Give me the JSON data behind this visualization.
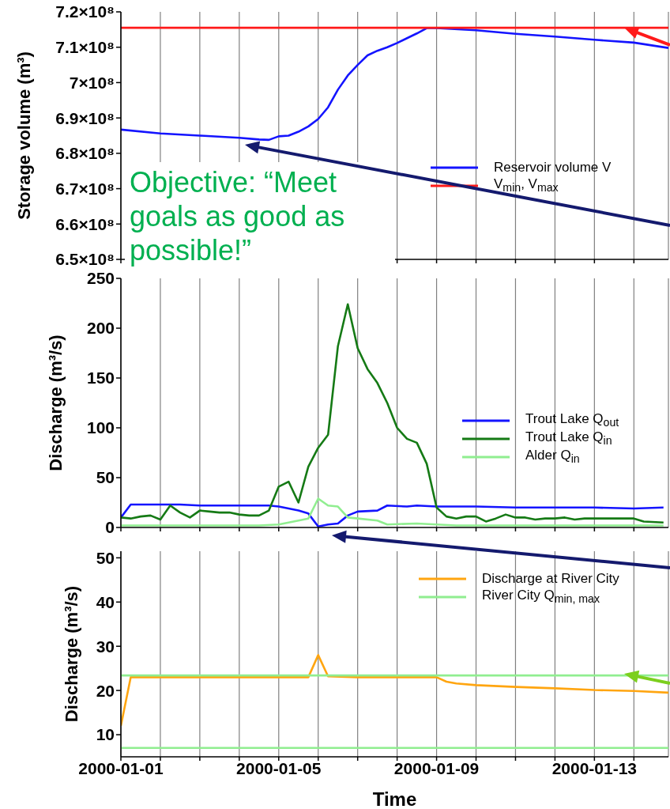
{
  "chart_data": [
    {
      "type": "line",
      "ylabel": "Storage volume (m³)",
      "legend": "right",
      "grid": "x",
      "tick_labels": "y",
      "annotations": [
        "Objective: “Meet goals as good as possible!”"
      ],
      "xlim": [
        "2000-01-01T00:00",
        "2000-01-14T21:00"
      ],
      "xticks": [
        "2000-01-01",
        {
          "value": "2000-01-02",
          "label": null
        },
        {
          "value": "2000-01-03",
          "label": null
        },
        {
          "value": "2000-01-04",
          "label": null
        },
        "2000-01-05",
        {
          "value": "2000-01-06",
          "label": null
        },
        {
          "value": "2000-01-07",
          "label": null
        },
        {
          "value": "2000-01-08",
          "label": null
        },
        "2000-01-09",
        {
          "value": "2000-01-10",
          "label": null
        },
        {
          "value": "2000-01-11",
          "label": null
        },
        {
          "value": "2000-01-12",
          "label": null
        },
        "2000-01-13",
        {
          "value": "2000-01-14",
          "label": null
        }
      ],
      "ylim": [
        650000000,
        720000000
      ],
      "yticks": [
        {
          "value": 650000000,
          "label": "6.5×10⁸"
        },
        {
          "value": 660000000,
          "label": "6.6×10⁸"
        },
        {
          "value": 670000000,
          "label": "6.7×10⁸"
        },
        {
          "value": 680000000,
          "label": "6.8×10⁸"
        },
        {
          "value": 690000000,
          "label": "6.9×10⁸"
        },
        {
          "value": 700000000,
          "label": "7×10⁸"
        },
        {
          "value": 710000000,
          "label": "7.1×10⁸"
        },
        {
          "value": 720000000,
          "label": "7.2×10⁸"
        }
      ],
      "series": [
        {
          "name": "Reservoir volume V",
          "color": "#1414ff",
          "x": [
            "2000-01-01T00:00",
            "2000-01-02T00:00",
            "2000-01-03T00:00",
            "2000-01-04T00:00",
            "2000-01-04T12:00",
            "2000-01-04T18:00",
            "2000-01-05T00:00",
            "2000-01-05T06:00",
            "2000-01-05T12:00",
            "2000-01-05T18:00",
            "2000-01-06T00:00",
            "2000-01-06T06:00",
            "2000-01-06T12:00",
            "2000-01-06T18:00",
            "2000-01-07T00:00",
            "2000-01-07T06:00",
            "2000-01-07T12:00",
            "2000-01-07T18:00",
            "2000-01-08T00:00",
            "2000-01-08T12:00",
            "2000-01-08T18:00",
            "2000-01-09T00:00",
            "2000-01-10T00:00",
            "2000-01-11T00:00",
            "2000-01-12T00:00",
            "2000-01-13T00:00",
            "2000-01-14T00:00",
            "2000-01-14T21:00"
          ],
          "values": [
            686700000,
            685600000,
            685000000,
            684400000,
            683900000,
            683800000,
            684800000,
            685000000,
            686100000,
            687600000,
            689700000,
            693000000,
            698000000,
            702000000,
            705000000,
            707700000,
            709000000,
            710000000,
            711200000,
            713900000,
            715400000,
            715400000,
            714800000,
            713800000,
            713000000,
            712100000,
            711300000,
            709800000
          ]
        },
        {
          "name": "V$_{min}$, V$_{max}$",
          "color": "#ff1a1a",
          "x": [
            "2000-01-01T00:00",
            "2000-01-14T21:00"
          ],
          "values": [
            715500000,
            715500000
          ]
        }
      ]
    },
    {
      "type": "line",
      "ylabel": "Discharge (m³/s)",
      "legend": "right",
      "grid": "x",
      "tick_labels": "y",
      "xlim": [
        "2000-01-01T00:00",
        "2000-01-14T21:00"
      ],
      "xticks": [
        "2000-01-01",
        {
          "value": "2000-01-02",
          "label": null
        },
        {
          "value": "2000-01-03",
          "label": null
        },
        {
          "value": "2000-01-04",
          "label": null
        },
        "2000-01-05",
        {
          "value": "2000-01-06",
          "label": null
        },
        {
          "value": "2000-01-07",
          "label": null
        },
        {
          "value": "2000-01-08",
          "label": null
        },
        "2000-01-09",
        {
          "value": "2000-01-10",
          "label": null
        },
        {
          "value": "2000-01-11",
          "label": null
        },
        {
          "value": "2000-01-12",
          "label": null
        },
        "2000-01-13",
        {
          "value": "2000-01-14",
          "label": null
        }
      ],
      "ylim": [
        0,
        250
      ],
      "yticks": [
        0,
        50,
        100,
        150,
        200,
        250
      ],
      "series": [
        {
          "name": "Trout Lake Q$_{out}$",
          "color": "#1414ff",
          "x": [
            "2000-01-01T00:00",
            "2000-01-01T06:00",
            "2000-01-02T00:00",
            "2000-01-02T06:00",
            "2000-01-02T12:00",
            "2000-01-03T00:00",
            "2000-01-03T06:00",
            "2000-01-04T00:00",
            "2000-01-04T18:00",
            "2000-01-05T00:00",
            "2000-01-05T06:00",
            "2000-01-05T12:00",
            "2000-01-05T18:00",
            "2000-01-06T00:00",
            "2000-01-06T06:00",
            "2000-01-06T12:00",
            "2000-01-06T18:00",
            "2000-01-07T00:00",
            "2000-01-07T12:00",
            "2000-01-07T18:00",
            "2000-01-08T06:00",
            "2000-01-08T12:00",
            "2000-01-09T00:00",
            "2000-01-10T00:00",
            "2000-01-11T00:00",
            "2000-01-12T00:00",
            "2000-01-13T00:00",
            "2000-01-14T00:00",
            "2000-01-14T18:00"
          ],
          "values": [
            10,
            23,
            23,
            23,
            23,
            22,
            22,
            22,
            22,
            21,
            19,
            17,
            14,
            1,
            3,
            4,
            12,
            16,
            17,
            22,
            21,
            22,
            21,
            21,
            20,
            20,
            20,
            19,
            20
          ]
        },
        {
          "name": "Trout Lake Q$_{in}$",
          "color": "#157a15",
          "x": [
            "2000-01-01T00:00",
            "2000-01-01T06:00",
            "2000-01-01T12:00",
            "2000-01-01T18:00",
            "2000-01-02T00:00",
            "2000-01-02T06:00",
            "2000-01-02T12:00",
            "2000-01-02T18:00",
            "2000-01-03T00:00",
            "2000-01-03T06:00",
            "2000-01-03T12:00",
            "2000-01-03T18:00",
            "2000-01-04T00:00",
            "2000-01-04T06:00",
            "2000-01-04T12:00",
            "2000-01-04T18:00",
            "2000-01-05T00:00",
            "2000-01-05T06:00",
            "2000-01-05T12:00",
            "2000-01-05T18:00",
            "2000-01-06T00:00",
            "2000-01-06T06:00",
            "2000-01-06T12:00",
            "2000-01-06T18:00",
            "2000-01-07T00:00",
            "2000-01-07T06:00",
            "2000-01-07T12:00",
            "2000-01-07T18:00",
            "2000-01-08T00:00",
            "2000-01-08T06:00",
            "2000-01-08T12:00",
            "2000-01-08T18:00",
            "2000-01-09T00:00",
            "2000-01-09T06:00",
            "2000-01-09T12:00",
            "2000-01-09T18:00",
            "2000-01-10T00:00",
            "2000-01-10T06:00",
            "2000-01-10T12:00",
            "2000-01-10T18:00",
            "2000-01-11T00:00",
            "2000-01-11T06:00",
            "2000-01-11T12:00",
            "2000-01-11T18:00",
            "2000-01-12T00:00",
            "2000-01-12T06:00",
            "2000-01-12T12:00",
            "2000-01-12T18:00",
            "2000-01-13T00:00",
            "2000-01-13T12:00",
            "2000-01-14T00:00",
            "2000-01-14T06:00",
            "2000-01-14T18:00"
          ],
          "values": [
            10,
            9,
            11,
            12,
            8,
            22,
            15,
            10,
            17,
            16,
            15,
            15,
            13,
            12,
            12,
            17,
            41,
            46,
            25,
            61,
            80,
            93,
            182,
            224,
            180,
            159,
            145,
            125,
            100,
            89,
            85,
            64,
            20,
            11,
            9,
            11,
            11,
            6,
            9,
            13,
            10,
            10,
            8,
            9,
            9,
            10,
            8,
            9,
            9,
            9,
            9,
            6,
            5
          ]
        },
        {
          "name": "Alder Q$_{in}$",
          "color": "#90ee90",
          "x": [
            "2000-01-01T00:00",
            "2000-01-04T12:00",
            "2000-01-05T00:00",
            "2000-01-05T12:00",
            "2000-01-05T18:00",
            "2000-01-06T00:00",
            "2000-01-06T06:00",
            "2000-01-06T12:00",
            "2000-01-06T18:00",
            "2000-01-07T00:00",
            "2000-01-07T12:00",
            "2000-01-07T18:00",
            "2000-01-08T12:00",
            "2000-01-09T00:00",
            "2000-01-09T12:00",
            "2000-01-14T18:00"
          ],
          "values": [
            2,
            2,
            3,
            7,
            9,
            29,
            22,
            21,
            10,
            9,
            7,
            3,
            4,
            3,
            2,
            2
          ]
        }
      ]
    },
    {
      "type": "line",
      "xlabel": "Time",
      "ylabel": "Discharge (m³/s)",
      "legend": "top right",
      "grid": "x",
      "xlim": [
        "2000-01-01T00:00",
        "2000-01-14T21:00"
      ],
      "xticks": [
        "2000-01-01",
        {
          "value": "2000-01-02",
          "label": null
        },
        {
          "value": "2000-01-03",
          "label": null
        },
        {
          "value": "2000-01-04",
          "label": null
        },
        "2000-01-05",
        {
          "value": "2000-01-06",
          "label": null
        },
        {
          "value": "2000-01-07",
          "label": null
        },
        {
          "value": "2000-01-08",
          "label": null
        },
        "2000-01-09",
        {
          "value": "2000-01-10",
          "label": null
        },
        {
          "value": "2000-01-11",
          "label": null
        },
        {
          "value": "2000-01-12",
          "label": null
        },
        "2000-01-13",
        {
          "value": "2000-01-14",
          "label": null
        }
      ],
      "ylim": [
        5,
        51.5
      ],
      "yticks": [
        10,
        20,
        30,
        40,
        50
      ],
      "series": [
        {
          "name": "Discharge at River City",
          "color": "#ffa510",
          "x": [
            "2000-01-01T00:00",
            "2000-01-01T06:00",
            "2000-01-05T18:00",
            "2000-01-06T00:00",
            "2000-01-06T06:00",
            "2000-01-07T00:00",
            "2000-01-09T00:00",
            "2000-01-09T06:00",
            "2000-01-09T12:00",
            "2000-01-10T00:00",
            "2000-01-11T00:00",
            "2000-01-12T00:00",
            "2000-01-13T00:00",
            "2000-01-14T00:00",
            "2000-01-14T21:00"
          ],
          "values": [
            12,
            23,
            23,
            28,
            23.2,
            23,
            23,
            22,
            21.6,
            21.2,
            20.8,
            20.5,
            20.1,
            19.9,
            19.5
          ]
        },
        {
          "name": "River City Q$_{min, max}$",
          "color": "#90ee90",
          "x": [
            "2000-01-01T00:00",
            "2000-01-14T21:00"
          ],
          "values": [
            23.4,
            23.4
          ]
        },
        {
          "color": "#90ee90",
          "x": [
            "2000-01-01T00:00",
            "2000-01-14T21:00"
          ],
          "values": [
            7,
            7
          ]
        }
      ]
    }
  ]
}
